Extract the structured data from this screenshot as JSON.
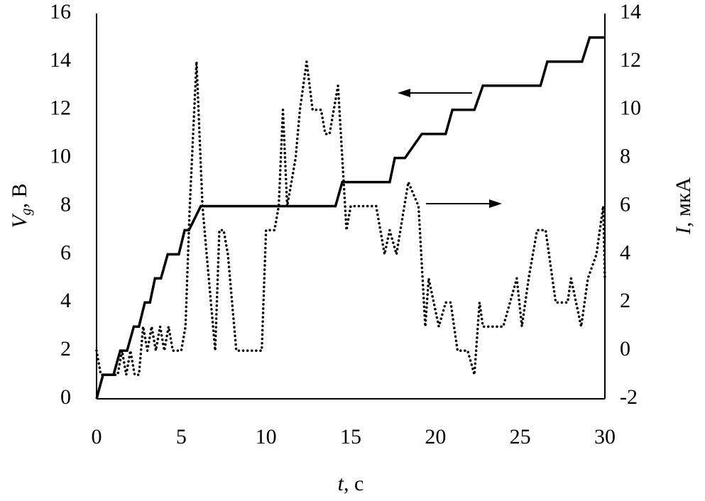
{
  "chart_data": {
    "type": "line",
    "xlabel": [
      "t",
      ", с"
    ],
    "ylabel": [
      "V",
      "g",
      ", В"
    ],
    "y2label": [
      "I",
      ", мкА"
    ],
    "xlim": [
      0,
      30
    ],
    "xticks": [
      0,
      5,
      10,
      15,
      20,
      25,
      30
    ],
    "ylim": [
      0,
      16
    ],
    "yticks": [
      0,
      2,
      4,
      6,
      8,
      10,
      12,
      14,
      16
    ],
    "y2lim": [
      -2,
      14
    ],
    "y2ticks": [
      -2,
      0,
      2,
      4,
      6,
      8,
      10,
      12,
      14
    ],
    "series": [
      {
        "color": "#000000",
        "style": "solid",
        "x": [
          0,
          0.38,
          1.0,
          1.4,
          1.8,
          2.2,
          2.5,
          2.85,
          3.15,
          3.45,
          3.8,
          4.2,
          4.85,
          5.2,
          5.45,
          6.15,
          14.1,
          14.5,
          17.3,
          17.6,
          18.2,
          19.2,
          20.6,
          21.0,
          22.3,
          22.8,
          26.2,
          26.6,
          28.65,
          29.1,
          30
        ],
        "values": [
          0,
          1,
          1,
          2,
          2,
          3,
          3,
          4,
          4,
          5,
          5,
          6,
          6,
          7,
          7,
          8,
          8,
          9,
          9,
          10,
          10,
          11,
          11,
          12,
          12,
          13,
          13,
          14,
          14,
          15,
          15
        ]
      },
      {
        "color": "#000000",
        "style": "dotted",
        "axis": "y2",
        "x": [
          0,
          0.25,
          0.5,
          0.75,
          1,
          1.25,
          1.5,
          1.75,
          2,
          2.25,
          2.5,
          2.75,
          3,
          3.25,
          3.5,
          3.75,
          4,
          4.25,
          4.5,
          4.75,
          5,
          5.25,
          5.5,
          5.9,
          6.25,
          6.5,
          6.75,
          7,
          7.25,
          7.5,
          7.75,
          8,
          8.25,
          8.5,
          9,
          9.5,
          9.75,
          10,
          10.25,
          10.5,
          10.75,
          11,
          11.25,
          11.5,
          11.75,
          12,
          12.4,
          12.75,
          13,
          13.25,
          13.5,
          13.75,
          14,
          14.25,
          14.5,
          14.75,
          15,
          15.3,
          16,
          16.5,
          17,
          17.3,
          17.7,
          18.4,
          19,
          19.4,
          19.6,
          20.2,
          20.6,
          20.9,
          21.3,
          21.9,
          22.3,
          22.6,
          22.8,
          24,
          24.8,
          25.1,
          25.5,
          26,
          26.5,
          27.1,
          27.8,
          28,
          28.6,
          29,
          29.5,
          29.9,
          30
        ],
        "values": [
          0,
          -1,
          -1,
          -1,
          -1,
          -1,
          0,
          -1,
          0,
          -1,
          -1,
          1,
          0,
          1,
          0,
          1,
          0,
          1,
          0,
          0,
          0,
          1,
          6,
          12,
          6,
          4,
          2,
          0,
          5,
          5,
          4,
          2,
          0,
          0,
          0,
          0,
          0,
          5,
          5,
          5,
          6,
          10,
          6,
          7,
          8,
          10,
          12,
          10,
          10,
          10,
          9,
          9,
          10,
          11,
          8,
          5,
          6,
          6,
          6,
          6,
          4,
          5,
          4,
          7,
          6,
          1,
          3,
          1,
          2,
          2,
          0,
          0,
          -1,
          2,
          1,
          1,
          3,
          1,
          3,
          5,
          5,
          2,
          2,
          3,
          1,
          3,
          4,
          6,
          3
        ]
      }
    ]
  }
}
